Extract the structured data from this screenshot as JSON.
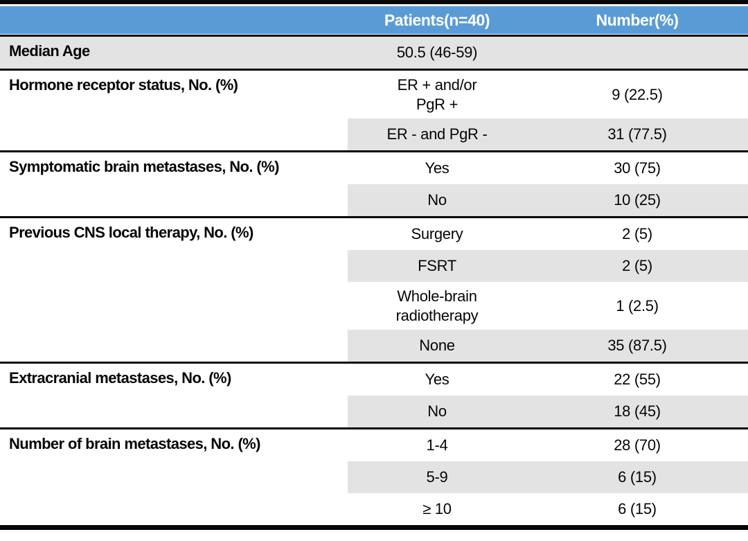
{
  "header": {
    "patients_label": "Patients(n=40)",
    "number_label": "Number(%)"
  },
  "colors": {
    "header_bg": "#5B9BD5",
    "header_text": "#FFFFFF",
    "band_gray": "#E4E3E3",
    "rule_black": "#060606"
  },
  "groups": [
    {
      "label": "Median Age",
      "rows": [
        {
          "patients": "50.5 (46-59)",
          "number": "",
          "shaded": true
        }
      ]
    },
    {
      "label": "Hormone receptor status, No. (%)",
      "rows": [
        {
          "patients": "ER + and/or\nPgR +",
          "number": "9 (22.5)",
          "shaded": false
        },
        {
          "patients": "ER - and PgR -",
          "number": "31 (77.5)",
          "shaded": true
        }
      ]
    },
    {
      "label": "Symptomatic brain metastases, No. (%)",
      "rows": [
        {
          "patients": "Yes",
          "number": "30 (75)",
          "shaded": false
        },
        {
          "patients": "No",
          "number": "10 (25)",
          "shaded": true
        }
      ]
    },
    {
      "label": "Previous CNS local therapy, No. (%)",
      "rows": [
        {
          "patients": "Surgery",
          "number": "2 (5)",
          "shaded": false
        },
        {
          "patients": "FSRT",
          "number": "2 (5)",
          "shaded": true
        },
        {
          "patients": "Whole-brain\nradiotherapy",
          "number": "1 (2.5)",
          "shaded": false
        },
        {
          "patients": "None",
          "number": "35 (87.5)",
          "shaded": true
        }
      ]
    },
    {
      "label": "Extracranial metastases, No. (%)",
      "rows": [
        {
          "patients": "Yes",
          "number": "22 (55)",
          "shaded": false
        },
        {
          "patients": "No",
          "number": "18 (45)",
          "shaded": true
        }
      ]
    },
    {
      "label": "Number of brain metastases, No. (%)",
      "rows": [
        {
          "patients": "1-4",
          "number": "28 (70)",
          "shaded": false
        },
        {
          "patients": "5-9",
          "number": "6 (15)",
          "shaded": true
        },
        {
          "patients": "≥ 10",
          "number": "6 (15)",
          "shaded": false
        }
      ]
    }
  ]
}
